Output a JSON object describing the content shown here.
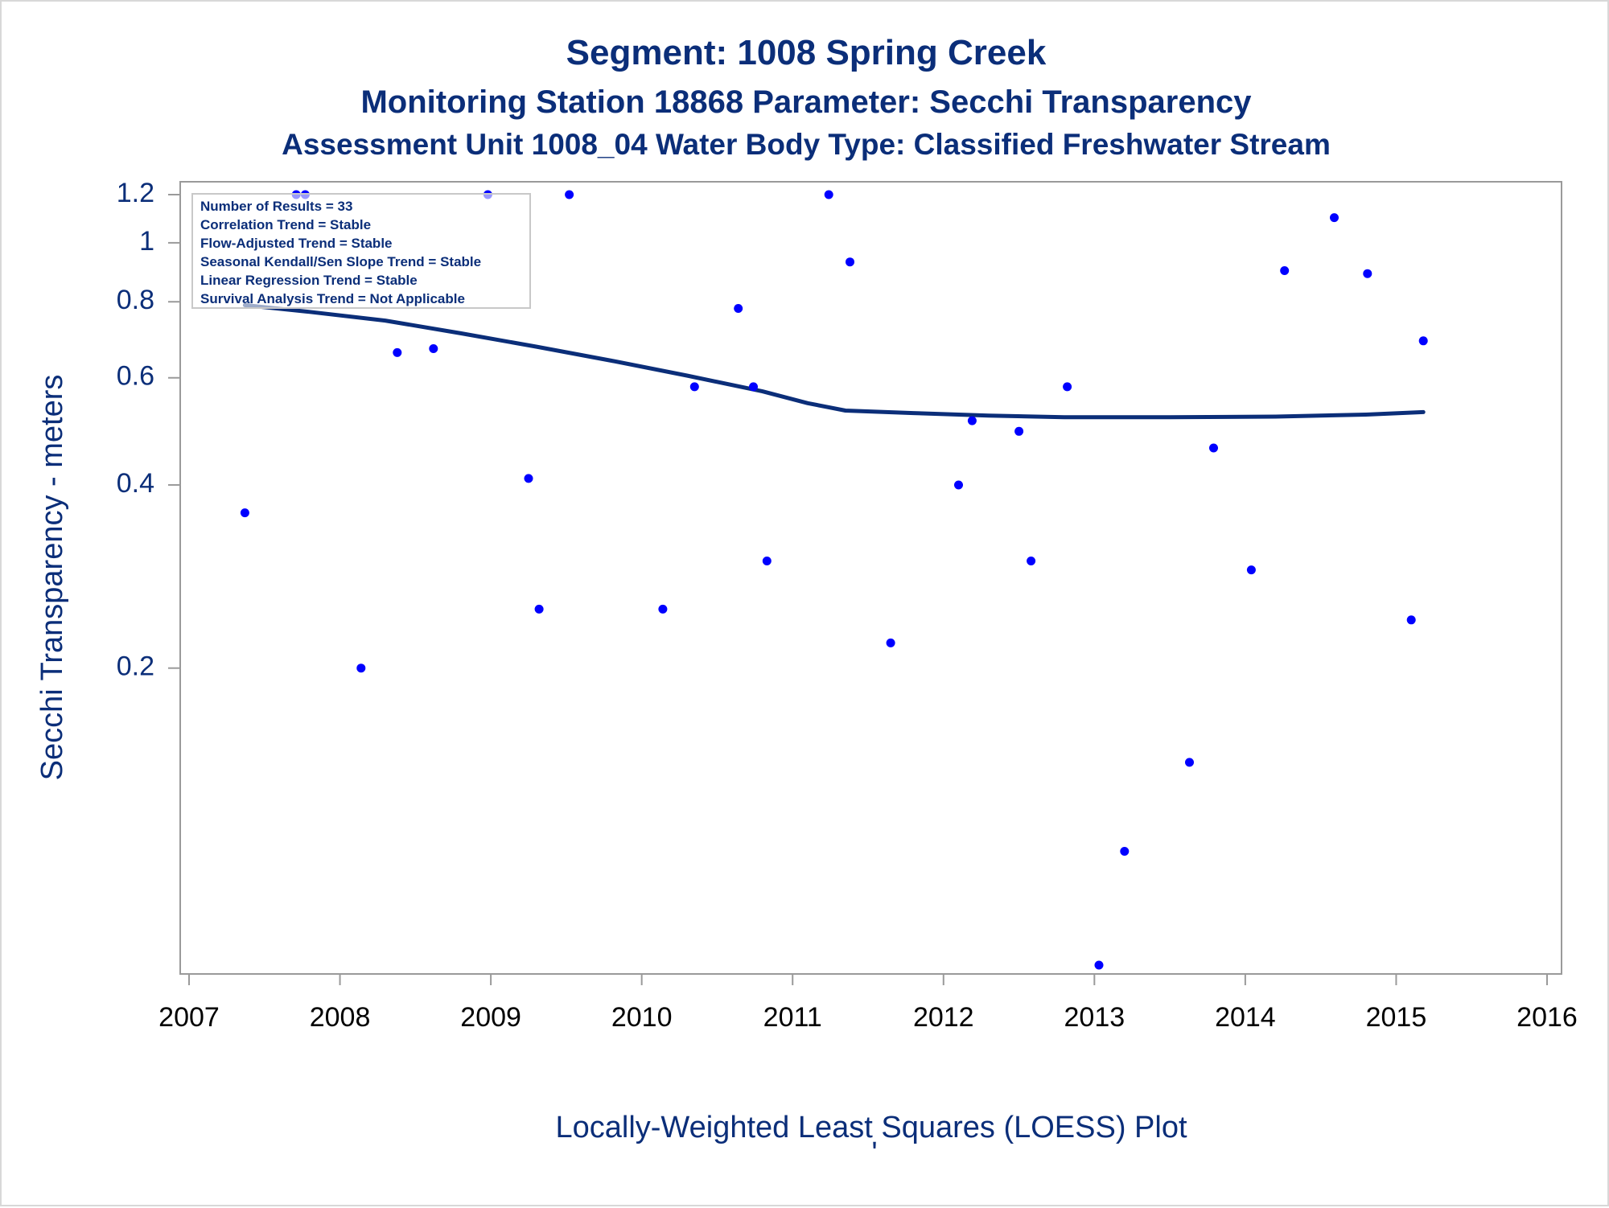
{
  "chart_data": {
    "type": "scatter",
    "title": "Segment: 1008  Spring Creek",
    "subtitle1": "Monitoring Station 18868 Parameter: Secchi Transparency",
    "subtitle2": "Assessment Unit 1008_04   Water Body Type: Classified Freshwater Stream",
    "xlabel": "Locally-Weighted Least Squares (LOESS) Plot",
    "footnote": "'",
    "ylabel": "Secchi Transparency - meters",
    "y_scale": "log",
    "xlim": [
      2007,
      2016
    ],
    "ylim": [
      0.065,
      1.2
    ],
    "x_ticks": [
      2007,
      2008,
      2009,
      2010,
      2011,
      2012,
      2013,
      2014,
      2015,
      2016
    ],
    "y_ticks": [
      0.2,
      0.4,
      0.6,
      0.8,
      1,
      1.2
    ],
    "grid": false,
    "inset_lines": [
      "Number of Results = 33",
      "Correlation Trend = Stable",
      "Flow-Adjusted Trend = Stable",
      "Seasonal Kendall/Sen Slope Trend = Stable",
      "Linear Regression Trend = Stable",
      "Survival Analysis Trend = Not Applicable"
    ],
    "series": [
      {
        "kind": "points",
        "color": "#0000ff",
        "points": [
          [
            2007.37,
            0.36
          ],
          [
            2007.71,
            1.2
          ],
          [
            2007.77,
            1.2
          ],
          [
            2008.14,
            0.2
          ],
          [
            2008.38,
            0.66
          ],
          [
            2008.62,
            0.67
          ],
          [
            2008.98,
            1.2
          ],
          [
            2009.25,
            0.41
          ],
          [
            2009.32,
            0.25
          ],
          [
            2009.52,
            1.2
          ],
          [
            2010.14,
            0.25
          ],
          [
            2010.35,
            0.58
          ],
          [
            2010.64,
            0.78
          ],
          [
            2010.74,
            0.58
          ],
          [
            2010.83,
            0.3
          ],
          [
            2011.24,
            1.2
          ],
          [
            2011.38,
            0.93
          ],
          [
            2011.65,
            0.22
          ],
          [
            2012.1,
            0.4
          ],
          [
            2012.19,
            0.51
          ],
          [
            2012.5,
            0.49
          ],
          [
            2012.58,
            0.3
          ],
          [
            2012.82,
            0.58
          ],
          [
            2013.03,
            0.065
          ],
          [
            2013.2,
            0.1
          ],
          [
            2013.63,
            0.14
          ],
          [
            2013.79,
            0.46
          ],
          [
            2014.04,
            0.29
          ],
          [
            2014.26,
            0.9
          ],
          [
            2014.59,
            1.1
          ],
          [
            2014.81,
            0.89
          ],
          [
            2015.1,
            0.24
          ],
          [
            2015.18,
            0.69
          ]
        ]
      },
      {
        "kind": "loess",
        "color": "#0b2e79",
        "points": [
          [
            2007.37,
            0.79
          ],
          [
            2007.8,
            0.77
          ],
          [
            2008.3,
            0.745
          ],
          [
            2008.8,
            0.71
          ],
          [
            2009.3,
            0.675
          ],
          [
            2009.8,
            0.64
          ],
          [
            2010.3,
            0.605
          ],
          [
            2010.8,
            0.57
          ],
          [
            2011.1,
            0.545
          ],
          [
            2011.35,
            0.53
          ],
          [
            2011.8,
            0.525
          ],
          [
            2012.3,
            0.52
          ],
          [
            2012.8,
            0.517
          ],
          [
            2013.5,
            0.517
          ],
          [
            2014.2,
            0.518
          ],
          [
            2014.8,
            0.522
          ],
          [
            2015.18,
            0.527
          ]
        ]
      }
    ]
  }
}
